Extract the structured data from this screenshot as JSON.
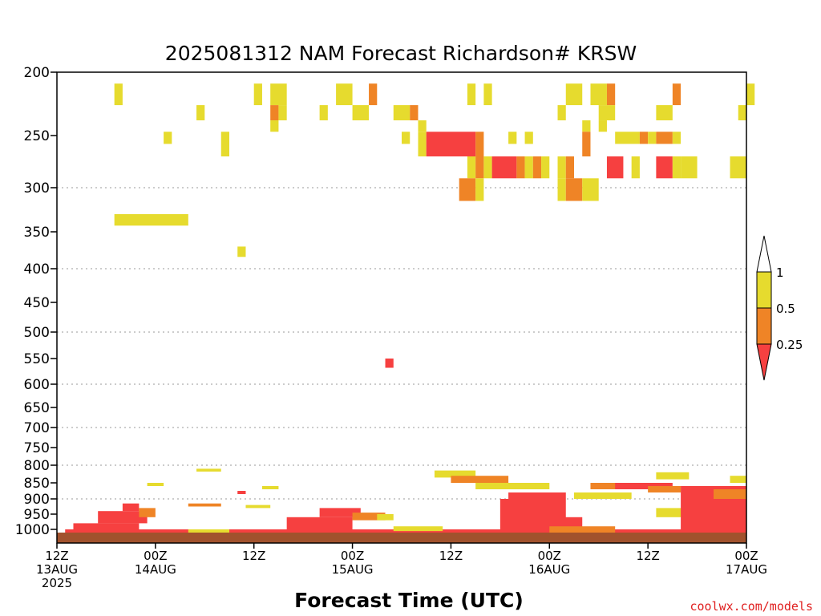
{
  "chart_data": {
    "type": "heatmap",
    "title": "2025081312 NAM Forecast Richardson# KRSW",
    "xlabel": "Forecast Time (UTC)",
    "credit": "coolwx.com/models",
    "colors": {
      "lt025": "#f64040",
      "b025_05": "#ef8426",
      "b05_1": "#e6db2e",
      "ground": "#a1522d",
      "credit": "#e02020"
    },
    "y_ticks": [
      "200",
      "250",
      "300",
      "350",
      "400",
      "450",
      "500",
      "550",
      "600",
      "650",
      "700",
      "750",
      "800",
      "850",
      "900",
      "950",
      "1000"
    ],
    "y_grid": [
      "300",
      "400",
      "500",
      "600",
      "700",
      "800",
      "900"
    ],
    "x_ticks": [
      {
        "h": 0,
        "label": [
          "12Z",
          "13AUG",
          "2025"
        ]
      },
      {
        "h": 12,
        "label": [
          "00Z",
          "14AUG"
        ]
      },
      {
        "h": 24,
        "label": [
          "12Z"
        ]
      },
      {
        "h": 36,
        "label": [
          "00Z",
          "15AUG"
        ]
      },
      {
        "h": 48,
        "label": [
          "12Z"
        ]
      },
      {
        "h": 60,
        "label": [
          "00Z",
          "16AUG"
        ]
      },
      {
        "h": 72,
        "label": [
          "12Z"
        ]
      },
      {
        "h": 84,
        "label": [
          "00Z",
          "17AUG"
        ]
      }
    ],
    "x_range": [
      0,
      84
    ],
    "y_range": [
      200,
      1040
    ],
    "legend": {
      "labels": [
        "1",
        "0.5",
        "0.25"
      ],
      "placement": "right"
    },
    "cells": [
      [
        7,
        209,
        8,
        226,
        "b05_1"
      ],
      [
        24,
        209,
        25,
        226,
        "b05_1"
      ],
      [
        26,
        209,
        28,
        226,
        "b05_1"
      ],
      [
        34,
        209,
        36,
        226,
        "b05_1"
      ],
      [
        38,
        209,
        39,
        226,
        "b025_05"
      ],
      [
        50,
        209,
        51,
        226,
        "b05_1"
      ],
      [
        52,
        209,
        53,
        226,
        "b05_1"
      ],
      [
        62,
        209,
        64,
        226,
        "b05_1"
      ],
      [
        65,
        209,
        67,
        226,
        "b05_1"
      ],
      [
        67,
        209,
        68,
        226,
        "b025_05"
      ],
      [
        75,
        209,
        76,
        226,
        "b025_05"
      ],
      [
        84,
        209,
        85,
        226,
        "b05_1"
      ],
      [
        17,
        226,
        18,
        238,
        "b05_1"
      ],
      [
        26,
        226,
        27,
        238,
        "b025_05"
      ],
      [
        27,
        226,
        28,
        238,
        "b05_1"
      ],
      [
        32,
        226,
        33,
        238,
        "b05_1"
      ],
      [
        36,
        226,
        38,
        238,
        "b05_1"
      ],
      [
        41,
        226,
        43,
        238,
        "b05_1"
      ],
      [
        43,
        226,
        44,
        238,
        "b025_05"
      ],
      [
        61,
        226,
        62,
        238,
        "b05_1"
      ],
      [
        66,
        226,
        68,
        238,
        "b05_1"
      ],
      [
        73,
        226,
        75,
        238,
        "b05_1"
      ],
      [
        83,
        226,
        84,
        238,
        "b05_1"
      ],
      [
        26,
        238,
        27,
        247,
        "b05_1"
      ],
      [
        44,
        238,
        45,
        247,
        "b05_1"
      ],
      [
        64,
        238,
        65,
        247,
        "b05_1"
      ],
      [
        66,
        238,
        67,
        247,
        "b05_1"
      ],
      [
        13,
        247,
        14,
        258,
        "b05_1"
      ],
      [
        20,
        247,
        21,
        270,
        "b05_1"
      ],
      [
        42,
        247,
        43,
        258,
        "b05_1"
      ],
      [
        44,
        247,
        45,
        270,
        "b05_1"
      ],
      [
        45,
        247,
        51,
        270,
        "lt025"
      ],
      [
        51,
        247,
        52,
        270,
        "b025_05"
      ],
      [
        55,
        247,
        56,
        258,
        "b05_1"
      ],
      [
        57,
        247,
        58,
        258,
        "b05_1"
      ],
      [
        64,
        247,
        65,
        270,
        "b025_05"
      ],
      [
        68,
        247,
        71,
        258,
        "b05_1"
      ],
      [
        71,
        247,
        72,
        258,
        "b025_05"
      ],
      [
        72,
        247,
        73,
        258,
        "b05_1"
      ],
      [
        73,
        247,
        75,
        258,
        "b025_05"
      ],
      [
        75,
        247,
        76,
        258,
        "b05_1"
      ],
      [
        50,
        270,
        51,
        291,
        "b05_1"
      ],
      [
        51,
        270,
        52,
        291,
        "b025_05"
      ],
      [
        52,
        270,
        53,
        291,
        "b05_1"
      ],
      [
        53,
        270,
        56,
        291,
        "lt025"
      ],
      [
        56,
        270,
        57,
        291,
        "b025_05"
      ],
      [
        57,
        270,
        58,
        291,
        "b05_1"
      ],
      [
        58,
        270,
        59,
        291,
        "b025_05"
      ],
      [
        59,
        270,
        60,
        291,
        "b05_1"
      ],
      [
        61,
        270,
        62,
        291,
        "b05_1"
      ],
      [
        62,
        270,
        63,
        291,
        "b025_05"
      ],
      [
        67,
        270,
        69,
        291,
        "lt025"
      ],
      [
        70,
        270,
        71,
        291,
        "b05_1"
      ],
      [
        73,
        270,
        75,
        291,
        "lt025"
      ],
      [
        75,
        270,
        76,
        291,
        "b05_1"
      ],
      [
        76,
        270,
        78,
        291,
        "b05_1"
      ],
      [
        82,
        270,
        84,
        291,
        "b05_1"
      ],
      [
        49,
        291,
        51,
        315,
        "b025_05"
      ],
      [
        51,
        291,
        52,
        315,
        "b05_1"
      ],
      [
        61,
        291,
        62,
        315,
        "b05_1"
      ],
      [
        62,
        291,
        64,
        315,
        "b025_05"
      ],
      [
        64,
        291,
        66,
        315,
        "b05_1"
      ],
      [
        7,
        330,
        16,
        343,
        "b05_1"
      ],
      [
        22,
        370,
        23,
        384,
        "b05_1"
      ],
      [
        40,
        550,
        41,
        568,
        "lt025"
      ],
      [
        1,
        1000,
        84,
        1015,
        "lt025"
      ],
      [
        2,
        980,
        10,
        1000,
        "lt025"
      ],
      [
        5,
        940,
        11,
        980,
        "lt025"
      ],
      [
        8,
        915,
        10,
        940,
        "lt025"
      ],
      [
        10,
        930,
        12,
        960,
        "b025_05"
      ],
      [
        16,
        1000,
        21,
        1012,
        "b05_1"
      ],
      [
        24,
        1000,
        33,
        1012,
        "lt025"
      ],
      [
        28,
        960,
        36,
        1000,
        "lt025"
      ],
      [
        32,
        930,
        37,
        960,
        "lt025"
      ],
      [
        36,
        945,
        40,
        970,
        "b025_05"
      ],
      [
        39,
        950,
        41,
        970,
        "b05_1"
      ],
      [
        41,
        990,
        47,
        1005,
        "b05_1"
      ],
      [
        46,
        815,
        51,
        835,
        "b05_1"
      ],
      [
        48,
        830,
        55,
        850,
        "b025_05"
      ],
      [
        51,
        850,
        60,
        870,
        "b05_1"
      ],
      [
        55,
        880,
        62,
        900,
        "lt025"
      ],
      [
        54,
        900,
        62,
        1000,
        "lt025"
      ],
      [
        58,
        960,
        64,
        1012,
        "lt025"
      ],
      [
        60,
        990,
        68,
        1010,
        "b025_05"
      ],
      [
        63,
        880,
        70,
        900,
        "b05_1"
      ],
      [
        65,
        850,
        73,
        870,
        "b025_05"
      ],
      [
        68,
        850,
        75,
        870,
        "lt025"
      ],
      [
        72,
        860,
        76,
        880,
        "b025_05"
      ],
      [
        73,
        820,
        77,
        840,
        "b05_1"
      ],
      [
        73,
        930,
        84,
        960,
        "b05_1"
      ],
      [
        76,
        860,
        84,
        900,
        "lt025"
      ],
      [
        76,
        900,
        84,
        1000,
        "lt025"
      ],
      [
        80,
        870,
        84,
        900,
        "b025_05"
      ],
      [
        82,
        830,
        84,
        850,
        "b05_1"
      ],
      [
        11,
        850,
        13,
        860,
        "b05_1"
      ],
      [
        17,
        810,
        20,
        818,
        "b05_1"
      ],
      [
        25,
        860,
        27,
        870,
        "b05_1"
      ],
      [
        22,
        875,
        23,
        885,
        "lt025"
      ],
      [
        16,
        915,
        20,
        925,
        "b025_05"
      ],
      [
        23,
        920,
        26,
        930,
        "b05_1"
      ]
    ]
  }
}
